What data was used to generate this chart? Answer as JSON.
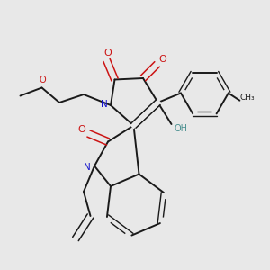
{
  "bg_color": "#e8e8e8",
  "bond_color": "#1a1a1a",
  "N_color": "#1414cc",
  "O_color": "#cc1414",
  "OH_color": "#4a9090",
  "figsize": [
    3.0,
    3.0
  ],
  "dpi": 100,
  "xlim": [
    0,
    10
  ],
  "ylim": [
    0,
    10
  ]
}
